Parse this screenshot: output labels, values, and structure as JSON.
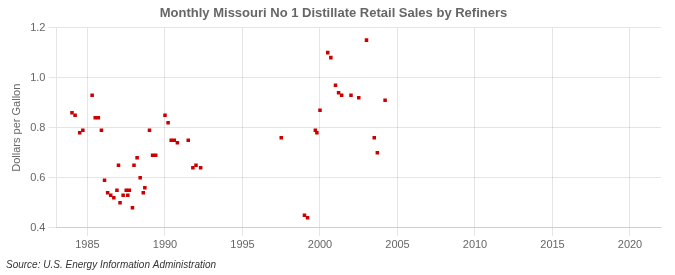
{
  "chart_data": {
    "type": "scatter",
    "title": "Monthly Missouri No 1 Distillate Retail Sales by Refiners",
    "ylabel": "Dollars per Gallon",
    "annotation": "Source: U.S. Energy Information Administration",
    "color": "#cc0000",
    "marker": "square",
    "grid": true,
    "xlim": [
      1983,
      2022
    ],
    "ylim": [
      0.4,
      1.2
    ],
    "xticks": [
      1985,
      1990,
      1995,
      2000,
      2005,
      2010,
      2015,
      2020
    ],
    "yticks": [
      0.4,
      0.6,
      0.8,
      {
        "value": 1.0,
        "label": "1.0"
      },
      1.2
    ],
    "x": [
      1984.0,
      1984.2,
      1984.5,
      1984.7,
      1985.3,
      1985.5,
      1985.7,
      1985.9,
      1986.1,
      1986.3,
      1986.5,
      1986.7,
      1986.9,
      1987.0,
      1987.1,
      1987.3,
      1987.5,
      1987.6,
      1987.7,
      1987.9,
      1988.0,
      1988.2,
      1988.4,
      1988.6,
      1988.7,
      1989.0,
      1989.2,
      1989.4,
      1990.0,
      1990.2,
      1990.4,
      1990.6,
      1990.8,
      1991.5,
      1991.8,
      1992.0,
      1992.3,
      1997.5,
      1999.0,
      1999.2,
      1999.7,
      1999.8,
      2000.0,
      2000.5,
      2000.7,
      2001.0,
      2001.2,
      2001.4,
      2002.0,
      2002.5,
      2003.0,
      2003.5,
      2003.7,
      2004.2
    ],
    "values": [
      0.86,
      0.85,
      0.78,
      0.79,
      0.93,
      0.84,
      0.84,
      0.79,
      0.59,
      0.54,
      0.53,
      0.52,
      0.55,
      0.65,
      0.5,
      0.53,
      0.55,
      0.53,
      0.55,
      0.48,
      0.65,
      0.68,
      0.6,
      0.54,
      0.56,
      0.79,
      0.69,
      0.69,
      0.85,
      0.82,
      0.75,
      0.75,
      0.74,
      0.75,
      0.64,
      0.65,
      0.64,
      0.76,
      0.45,
      0.44,
      0.79,
      0.78,
      0.87,
      1.1,
      1.08,
      0.97,
      0.94,
      0.93,
      0.93,
      0.92,
      1.15,
      0.76,
      0.7,
      0.91
    ]
  }
}
